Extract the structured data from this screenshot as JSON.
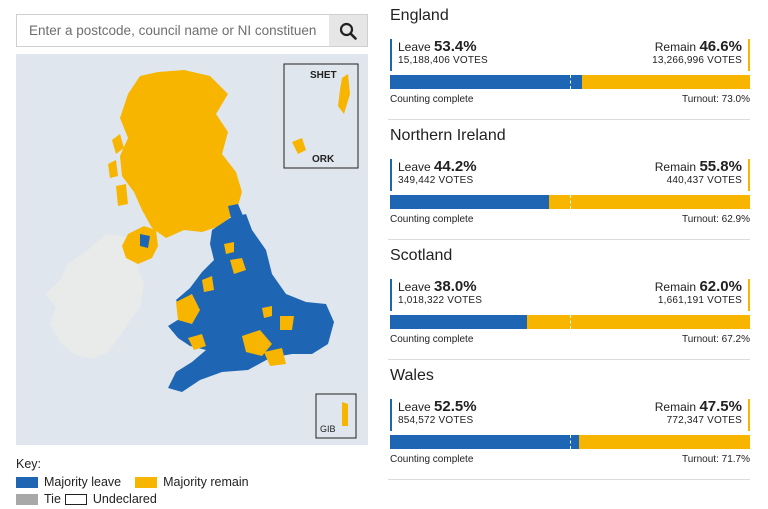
{
  "search": {
    "placeholder": "Enter a postcode, council name or NI constituency",
    "icon": "search-icon"
  },
  "map": {
    "inset_labels": {
      "shetland": "SHET",
      "orkney": "ORK",
      "gibraltar": "GIB"
    },
    "colors": {
      "leave": "#1e66b4",
      "remain": "#f7b500",
      "sea": "#dfe6ed",
      "other": "#e9ebea",
      "tie": "#a8a8a8"
    }
  },
  "key": {
    "title": "Key:",
    "leave": "Majority leave",
    "remain": "Majority remain",
    "tie": "Tie",
    "undeclared": "Undeclared"
  },
  "regions": [
    {
      "name": "England",
      "leave_label": "Leave",
      "leave_pct": "53.4%",
      "leave_votes": "15,188,406 VOTES",
      "remain_label": "Remain",
      "remain_pct": "46.6%",
      "remain_votes": "13,266,996 VOTES",
      "leave_fraction": 0.534,
      "status": "Counting complete",
      "turnout": "Turnout: 73.0%"
    },
    {
      "name": "Northern Ireland",
      "leave_label": "Leave",
      "leave_pct": "44.2%",
      "leave_votes": "349,442 VOTES",
      "remain_label": "Remain",
      "remain_pct": "55.8%",
      "remain_votes": "440,437 VOTES",
      "leave_fraction": 0.442,
      "status": "Counting complete",
      "turnout": "Turnout: 62.9%"
    },
    {
      "name": "Scotland",
      "leave_label": "Leave",
      "leave_pct": "38.0%",
      "leave_votes": "1,018,322 VOTES",
      "remain_label": "Remain",
      "remain_pct": "62.0%",
      "remain_votes": "1,661,191 VOTES",
      "leave_fraction": 0.38,
      "status": "Counting complete",
      "turnout": "Turnout: 67.2%"
    },
    {
      "name": "Wales",
      "leave_label": "Leave",
      "leave_pct": "52.5%",
      "leave_votes": "854,572 VOTES",
      "remain_label": "Remain",
      "remain_pct": "47.5%",
      "remain_votes": "772,347 VOTES",
      "leave_fraction": 0.525,
      "status": "Counting complete",
      "turnout": "Turnout: 71.7%"
    }
  ]
}
